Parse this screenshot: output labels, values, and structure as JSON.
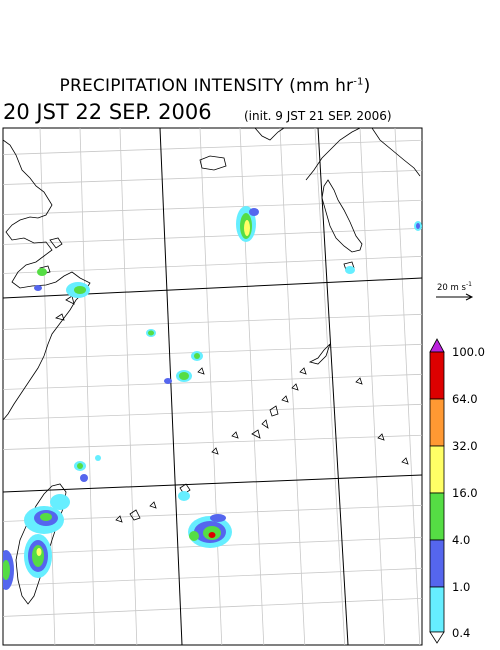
{
  "title_prefix": "PRECIPITATION INTENSITY (mm hr",
  "title_exponent": "-1",
  "title_suffix": ")",
  "datetime": "20 JST 22 SEP. 2006",
  "init_text": "(init. 9 JST 21 SEP. 2006)",
  "vector_legend": {
    "value": "20 m s",
    "exponent": "-1"
  },
  "colorbar": {
    "levels": [
      "100.0",
      "64.0",
      "32.0",
      "16.0",
      "4.0",
      "1.0",
      "0.4"
    ],
    "colors": [
      "#dd0000",
      "#ff9933",
      "#ffff66",
      "#55dd44",
      "#5566ee",
      "#66eeff"
    ],
    "top_arrow_color": "#bb22dd",
    "bottom_arrow_color": "#ffffff"
  }
}
